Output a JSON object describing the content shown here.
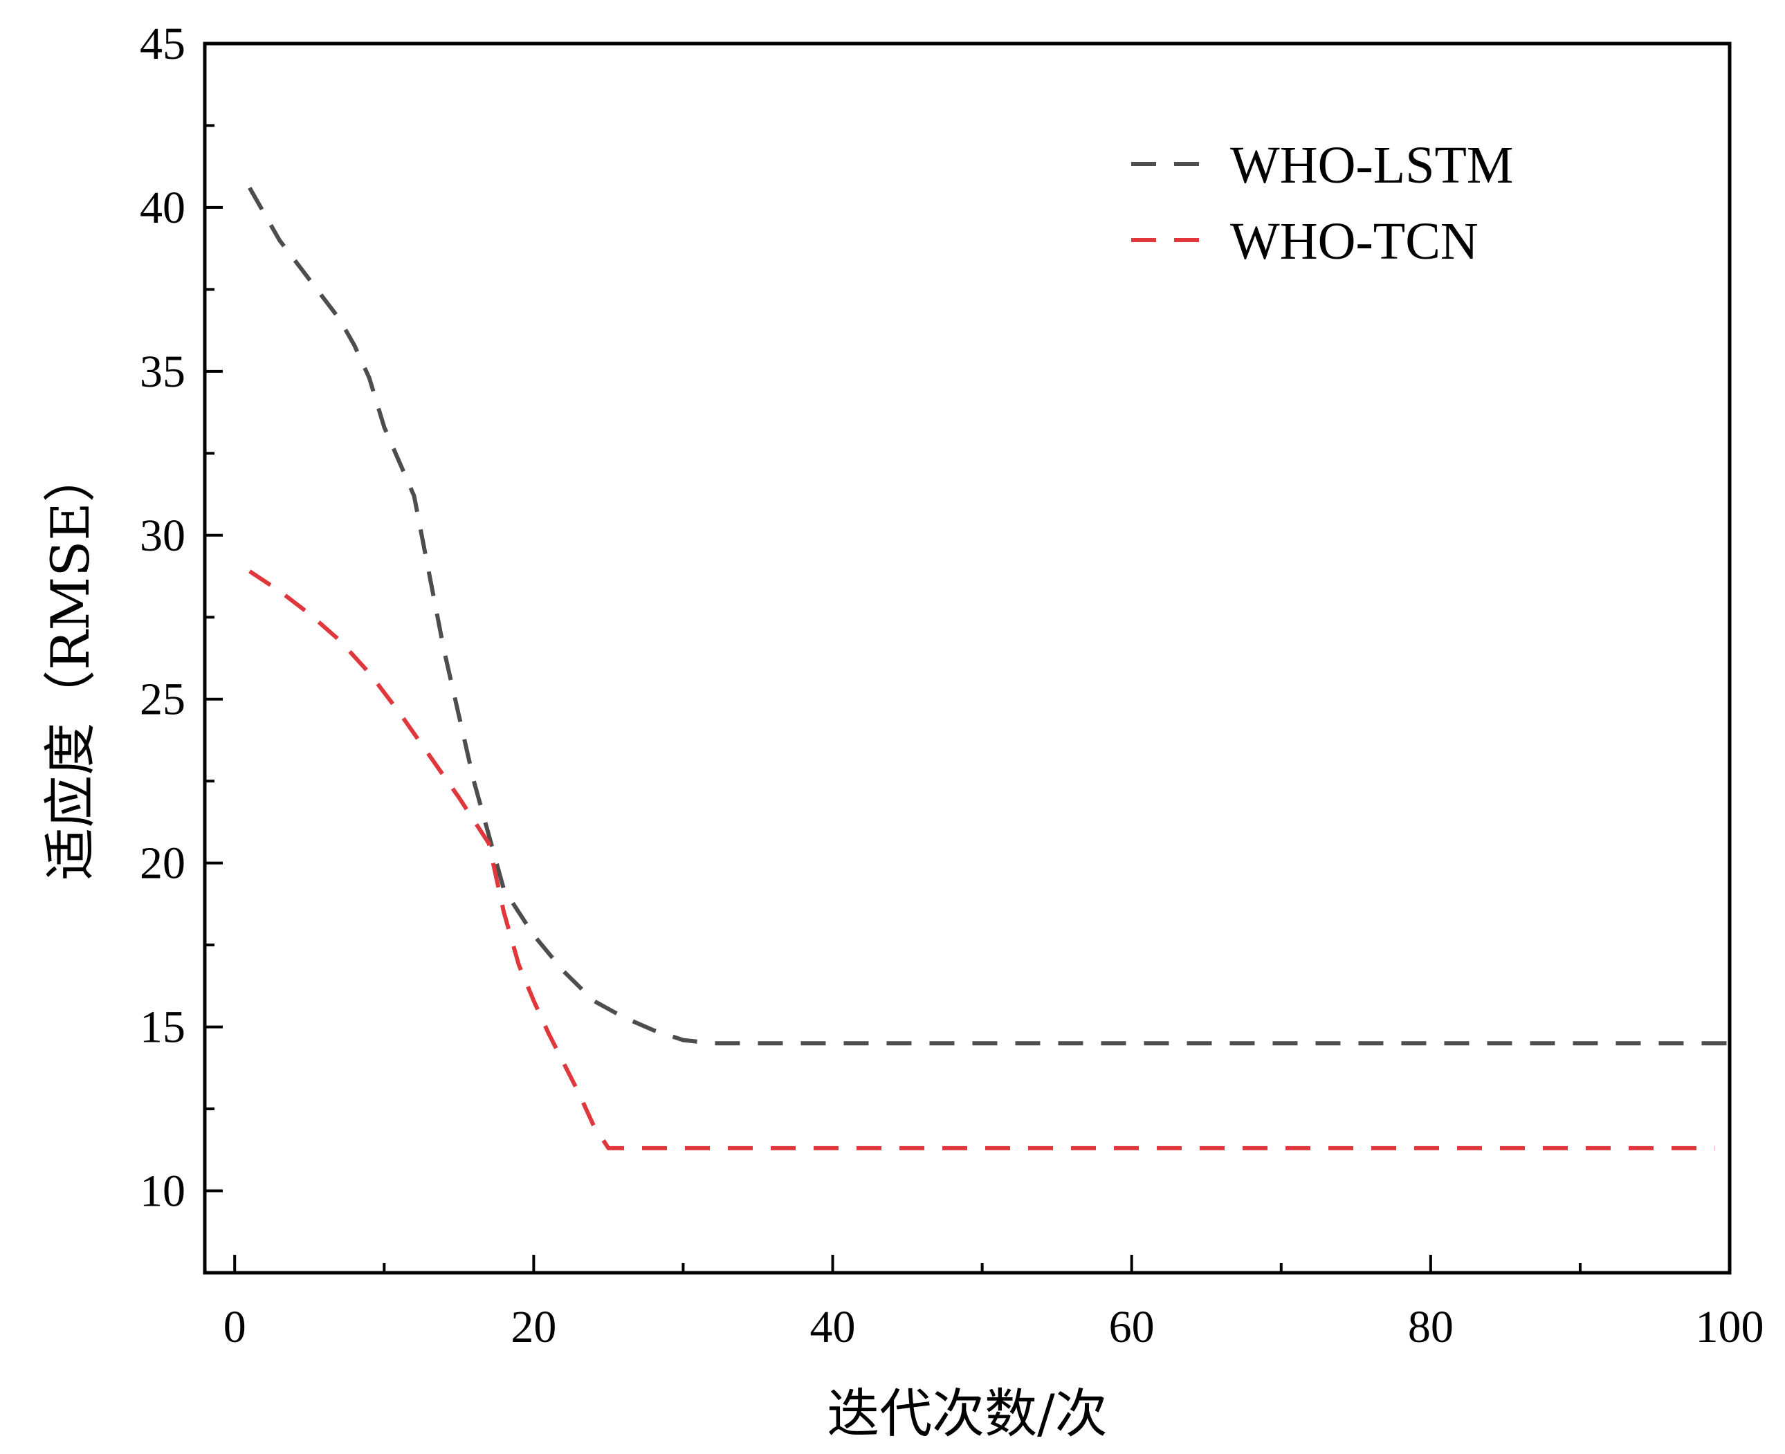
{
  "chart_data": {
    "type": "line",
    "title": "",
    "xlabel": "迭代次数/次",
    "ylabel": "适应度（RMSE）",
    "xlim": [
      -2,
      100
    ],
    "ylim": [
      7.5,
      45
    ],
    "x_ticks": [
      0,
      20,
      40,
      60,
      80,
      100
    ],
    "y_ticks": [
      10,
      15,
      20,
      25,
      30,
      35,
      40,
      45
    ],
    "x_tick_labels": [
      "0",
      "20",
      "40",
      "60",
      "80",
      "100"
    ],
    "y_tick_labels": [
      "10",
      "15",
      "20",
      "25",
      "30",
      "35",
      "40",
      "45"
    ],
    "grid": false,
    "legend_position": "top-right",
    "series": [
      {
        "name": "WHO-LSTM",
        "color": "#4d4d4d",
        "x": [
          1,
          3,
          5,
          7,
          8,
          9,
          10,
          12,
          14,
          16,
          18,
          20,
          22,
          24,
          26,
          28,
          30,
          32,
          40,
          60,
          80,
          100
        ],
        "y": [
          40.6,
          39.0,
          37.8,
          36.6,
          35.8,
          34.8,
          33.3,
          31.2,
          26.5,
          22.5,
          19.2,
          17.8,
          16.7,
          15.8,
          15.3,
          14.9,
          14.6,
          14.5,
          14.5,
          14.5,
          14.5,
          14.5
        ]
      },
      {
        "name": "WHO-TCN",
        "color": "#e0373c",
        "x": [
          1,
          3,
          5,
          7,
          9,
          11,
          13,
          15,
          17,
          18,
          19,
          20,
          21,
          22,
          23,
          24,
          25,
          26,
          27,
          40,
          60,
          80,
          99
        ],
        "y": [
          28.9,
          28.3,
          27.6,
          26.8,
          25.8,
          24.6,
          23.3,
          22.0,
          20.6,
          18.5,
          16.9,
          15.8,
          14.8,
          13.9,
          13.0,
          12.0,
          11.3,
          11.3,
          11.3,
          11.3,
          11.3,
          11.3,
          11.3
        ]
      }
    ]
  }
}
